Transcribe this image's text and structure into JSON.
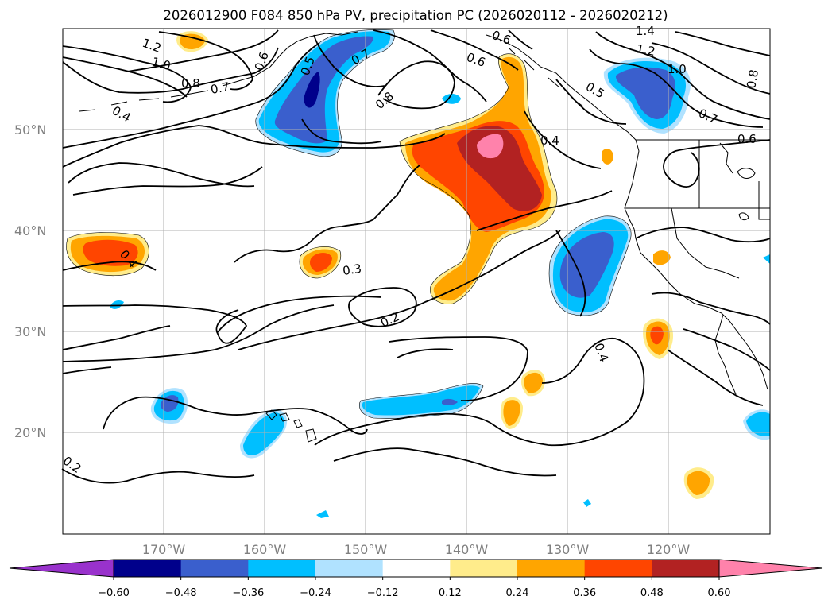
{
  "title": "2026012900 F084 850 hPa PV, precipitation PC (2026020112 - 2026020212)",
  "map": {
    "lat_labels": [
      "50°N",
      "40°N",
      "30°N",
      "20°N"
    ],
    "lon_labels": [
      "170°W",
      "160°W",
      "150°W",
      "140°W",
      "130°W",
      "120°W"
    ],
    "contour_labels": [
      "1.2",
      "1.0",
      "0.8",
      "0.7",
      "0.6",
      "0.5",
      "0.4",
      "0.6",
      "0.7",
      "0.8",
      "0.6",
      "0.5",
      "1.4",
      "1.2",
      "1.0",
      "0.7",
      "0.6",
      "0.8",
      "0.4",
      "0.4",
      "0.3",
      "0.2",
      "0.4",
      "0.2"
    ]
  },
  "colorbar": {
    "ticks": [
      "−0.60",
      "−0.48",
      "−0.36",
      "−0.24",
      "−0.12",
      "0.12",
      "0.24",
      "0.36",
      "0.48",
      "0.60"
    ],
    "colors": [
      "#9932CC",
      "#00008B",
      "#3A5FCD",
      "#00BFFF",
      "#B0E2FF",
      "#FFFFFF",
      "#FFEC8B",
      "#FFA500",
      "#FF4500",
      "#B22222",
      "#FF82AB"
    ]
  }
}
